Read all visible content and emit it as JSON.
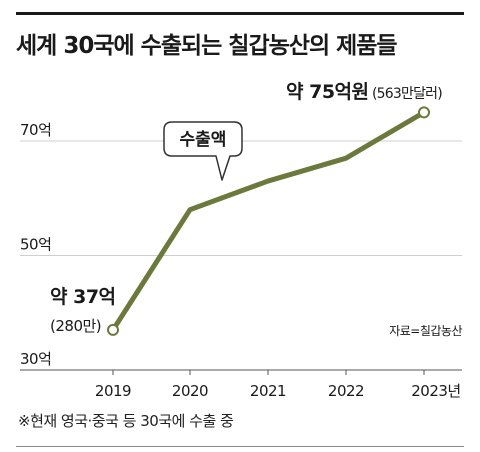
{
  "title": "세계 30국에 수출되는 칠갑농산의 제품들",
  "footnote": "※현재 영국·중국 등 30국에 수출 중",
  "source": "자료=칠갑농산",
  "colors": {
    "line": "#6b7a3c",
    "grid": "#cfcfcf",
    "text": "#1a1a1a"
  },
  "chart_data": {
    "type": "line",
    "x": [
      "2019",
      "2020",
      "2021",
      "2022",
      "2023년"
    ],
    "values": [
      37,
      58,
      63,
      67,
      75
    ],
    "ylim": [
      30,
      80
    ],
    "yticks": [
      30,
      50,
      70
    ],
    "ytick_labels": [
      "30억",
      "50억",
      "70억"
    ],
    "grid": true,
    "annotations": {
      "first_value": "약 37억",
      "first_sub": "(280만)",
      "last_value": "약 75억원",
      "last_sub": "(563만달러)",
      "callout": "수출액"
    }
  }
}
